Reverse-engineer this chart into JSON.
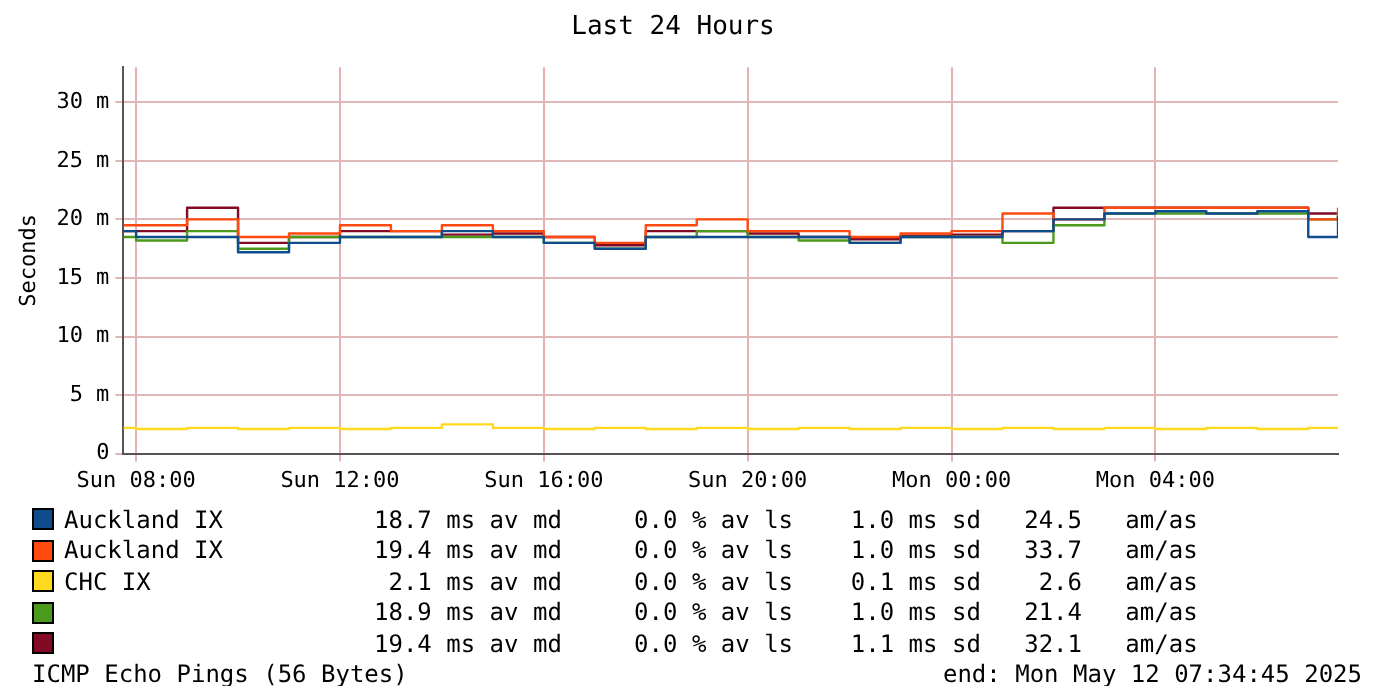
{
  "chart_data": {
    "type": "step",
    "title": "Last 24 Hours",
    "ylabel": "Seconds",
    "x": [
      "2025-05-11T07:45",
      "2025-05-11T08:00",
      "2025-05-11T09:00",
      "2025-05-11T10:00",
      "2025-05-11T11:00",
      "2025-05-11T12:00",
      "2025-05-11T13:00",
      "2025-05-11T14:00",
      "2025-05-11T15:00",
      "2025-05-11T16:00",
      "2025-05-11T17:00",
      "2025-05-11T18:00",
      "2025-05-11T19:00",
      "2025-05-11T20:00",
      "2025-05-11T21:00",
      "2025-05-11T22:00",
      "2025-05-11T23:00",
      "2025-05-12T00:00",
      "2025-05-12T01:00",
      "2025-05-12T02:00",
      "2025-05-12T03:00",
      "2025-05-12T04:00",
      "2025-05-12T05:00",
      "2025-05-12T06:00",
      "2025-05-12T07:00",
      "2025-05-12T07:35"
    ],
    "xlim": [
      "2025-05-11T07:45",
      "2025-05-12T07:35"
    ],
    "xticks": [
      {
        "value": "2025-05-11T08:00",
        "label": "Sun 08:00"
      },
      {
        "value": "2025-05-11T12:00",
        "label": "Sun 12:00"
      },
      {
        "value": "2025-05-11T16:00",
        "label": "Sun 16:00"
      },
      {
        "value": "2025-05-11T20:00",
        "label": "Sun 20:00"
      },
      {
        "value": "2025-05-12T00:00",
        "label": "Mon 00:00"
      },
      {
        "value": "2025-05-12T04:00",
        "label": "Mon 04:00"
      }
    ],
    "ylim": [
      0,
      33
    ],
    "yticks": [
      {
        "value": 0,
        "label": "0"
      },
      {
        "value": 5,
        "label": "5 m"
      },
      {
        "value": 10,
        "label": "10 m"
      },
      {
        "value": 15,
        "label": "15 m"
      },
      {
        "value": 20,
        "label": "20 m"
      },
      {
        "value": 25,
        "label": "25 m"
      },
      {
        "value": 30,
        "label": "30 m"
      }
    ],
    "grid": true,
    "legend": "bottom",
    "marker": "none",
    "series": [
      {
        "name": "Auckland IX",
        "color": "#0f4c8c",
        "values": [
          19,
          18.5,
          18.5,
          17.2,
          18,
          18.5,
          18.5,
          19,
          18.5,
          18,
          17.5,
          18.5,
          18.5,
          18.5,
          18.5,
          18,
          18.5,
          18.5,
          19,
          20,
          20.5,
          20.7,
          20.5,
          20.7,
          18.5,
          20.3
        ]
      },
      {
        "name": "Auckland IX",
        "color": "#ff4a0f",
        "values": [
          19.5,
          19.5,
          20,
          18.5,
          18.8,
          19.5,
          19,
          19.5,
          19,
          18.5,
          18,
          19.5,
          20,
          19,
          19,
          18.5,
          18.8,
          19,
          20.5,
          20,
          21,
          21,
          21,
          21,
          20,
          21
        ]
      },
      {
        "name": "CHC IX",
        "color": "#ffd820",
        "values": [
          2.2,
          2.1,
          2.2,
          2.1,
          2.2,
          2.1,
          2.2,
          2.5,
          2.2,
          2.1,
          2.2,
          2.1,
          2.2,
          2.1,
          2.2,
          2.1,
          2.2,
          2.1,
          2.2,
          2.1,
          2.2,
          2.1,
          2.2,
          2.1,
          2.2,
          2.1
        ]
      },
      {
        "color": "#4c9a1c",
        "values": [
          18.5,
          18.2,
          19,
          17.5,
          18.5,
          18.5,
          18.5,
          18.5,
          18.5,
          18,
          17.5,
          18.5,
          19,
          18.5,
          18.2,
          18,
          18.5,
          18.5,
          18,
          19.5,
          20.5,
          20.5,
          20.5,
          20.5,
          20,
          20.5
        ]
      },
      {
        "color": "#820a24",
        "values": [
          19,
          19,
          21,
          18,
          18.5,
          19,
          19,
          18.7,
          18.8,
          18.5,
          17.8,
          19,
          19,
          18.8,
          18.5,
          18.3,
          18.6,
          18.7,
          19,
          21,
          21,
          21,
          21,
          21,
          20.5,
          20.5
        ]
      }
    ],
    "annotations": [
      "18.7 ms av md     0.0 % av ls    1.0 ms sd   24.5   am/as",
      "19.4 ms av md     0.0 % av ls    1.0 ms sd   33.7   am/as",
      " 2.1 ms av md     0.0 % av ls    0.1 ms sd    2.6   am/as",
      "18.9 ms av md     0.0 % av ls    1.0 ms sd   21.4   am/as",
      "19.4 ms av md     0.0 % av ls    1.1 ms sd   32.1   am/as",
      "ICMP Echo Pings (56 Bytes)",
      "end: Mon May 12 07:34:45 2025"
    ]
  }
}
